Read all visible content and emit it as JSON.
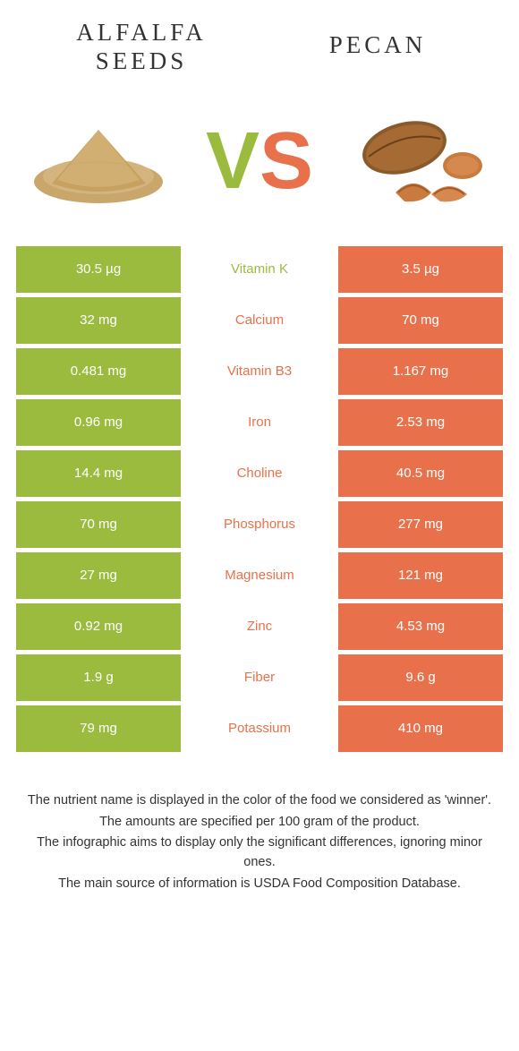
{
  "colors": {
    "left": "#9BBB3E",
    "right": "#E8714C",
    "text": "#333333",
    "white": "#ffffff"
  },
  "header": {
    "left_title": "Alfalfa seeds",
    "right_title": "Pecan"
  },
  "vs": {
    "v": "V",
    "s": "S"
  },
  "rows": [
    {
      "left": "30.5 µg",
      "nutrient": "Vitamin K",
      "right": "3.5 µg",
      "winner": "left"
    },
    {
      "left": "32 mg",
      "nutrient": "Calcium",
      "right": "70 mg",
      "winner": "right"
    },
    {
      "left": "0.481 mg",
      "nutrient": "Vitamin B3",
      "right": "1.167 mg",
      "winner": "right"
    },
    {
      "left": "0.96 mg",
      "nutrient": "Iron",
      "right": "2.53 mg",
      "winner": "right"
    },
    {
      "left": "14.4 mg",
      "nutrient": "Choline",
      "right": "40.5 mg",
      "winner": "right"
    },
    {
      "left": "70 mg",
      "nutrient": "Phosphorus",
      "right": "277 mg",
      "winner": "right"
    },
    {
      "left": "27 mg",
      "nutrient": "Magnesium",
      "right": "121 mg",
      "winner": "right"
    },
    {
      "left": "0.92 mg",
      "nutrient": "Zinc",
      "right": "4.53 mg",
      "winner": "right"
    },
    {
      "left": "1.9 g",
      "nutrient": "Fiber",
      "right": "9.6 g",
      "winner": "right"
    },
    {
      "left": "79 mg",
      "nutrient": "Potassium",
      "right": "410 mg",
      "winner": "right"
    }
  ],
  "footnotes": [
    "The nutrient name is displayed in the color of the food we considered as 'winner'.",
    "The amounts are specified per 100 gram of the product.",
    "The infographic aims to display only the significant differences, ignoring minor ones.",
    "The main source of information is USDA Food Composition Database."
  ]
}
